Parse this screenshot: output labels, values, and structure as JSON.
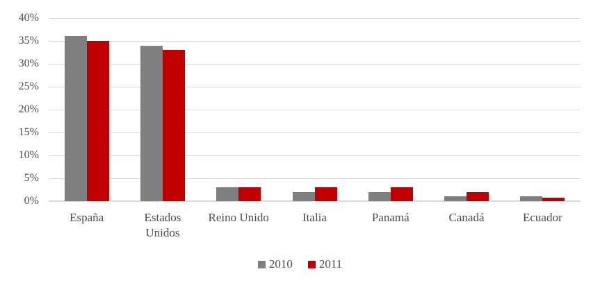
{
  "chart_data": {
    "type": "bar",
    "title": "",
    "xlabel": "",
    "ylabel": "",
    "categories": [
      "España",
      "Estados Unidos",
      "Reino Unido",
      "Italia",
      "Panamá",
      "Canadá",
      "Ecuador"
    ],
    "series": [
      {
        "name": "2010",
        "color": "#7F7F7F",
        "values": [
          36,
          34,
          3,
          2,
          2,
          1,
          1
        ]
      },
      {
        "name": "2011",
        "color": "#C00000",
        "values": [
          35,
          33,
          3,
          3,
          3,
          2,
          0.8
        ]
      }
    ],
    "ylim": [
      0,
      40
    ],
    "ytick_step": 5,
    "ytick_labels": [
      "0%",
      "5%",
      "10%",
      "15%",
      "20%",
      "25%",
      "30%",
      "35%",
      "40%"
    ],
    "grid": true,
    "legend_position": "bottom",
    "colors": {
      "gridline": "#D9D9D9",
      "axis_text": "#4D4D4D",
      "background": "#FFFFFF"
    }
  }
}
